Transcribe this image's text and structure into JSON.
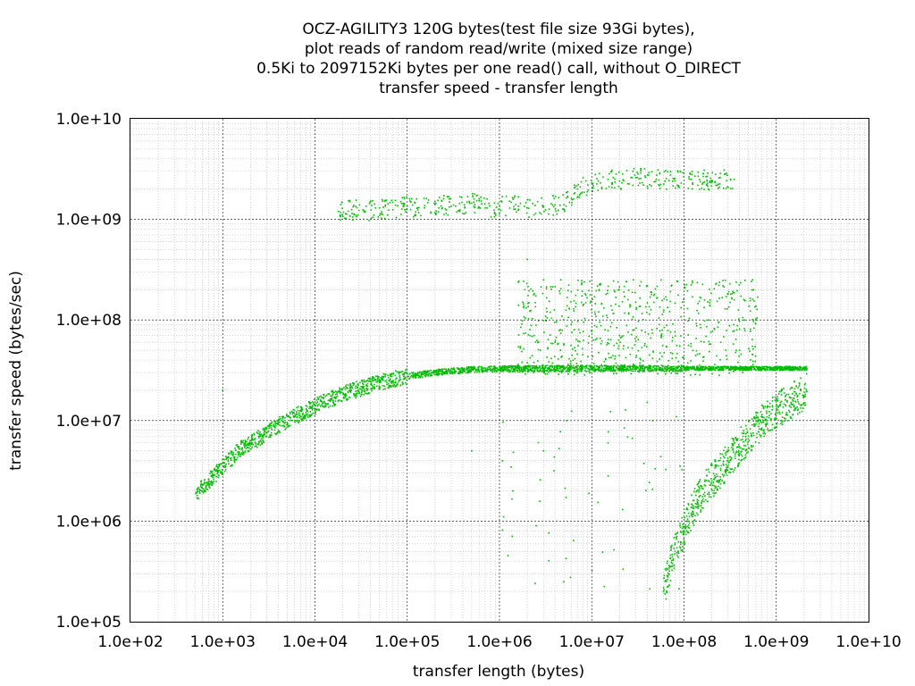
{
  "chart_data": {
    "type": "scatter",
    "title_lines": [
      "OCZ-AGILITY3 120G bytes(test file size 93Gi bytes),",
      "plot reads of random read/write (mixed size range)",
      "0.5Ki to 2097152Ki bytes per one read() call, without O_DIRECT",
      "transfer speed - transfer length"
    ],
    "xlabel": "transfer length (bytes)",
    "ylabel": "transfer speed (bytes/sec)",
    "x_scale": "log",
    "y_scale": "log",
    "xlim": [
      100,
      10000000000
    ],
    "ylim": [
      100000,
      10000000000
    ],
    "x_tick_labels": [
      "1.0e+02",
      "1.0e+03",
      "1.0e+04",
      "1.0e+05",
      "1.0e+06",
      "1.0e+07",
      "1.0e+08",
      "1.0e+09",
      "1.0e+10"
    ],
    "y_tick_labels": [
      "1.0e+05",
      "1.0e+06",
      "1.0e+07",
      "1.0e+08",
      "1.0e+09",
      "1.0e+10"
    ],
    "grid": true,
    "marker_color": "#00bb00",
    "clusters": [
      {
        "description_points": "main plateau",
        "points": [
          [
            512,
            1900000
          ],
          [
            1024,
            3500000
          ],
          [
            1536,
            5200000
          ],
          [
            2048,
            6000000
          ],
          [
            3000,
            7500000
          ],
          [
            4096,
            9000000
          ],
          [
            6000,
            11000000
          ],
          [
            8192,
            12500000
          ],
          [
            12000,
            15000000
          ],
          [
            16384,
            17000000
          ],
          [
            24000,
            19500000
          ],
          [
            32768,
            21000000
          ],
          [
            50000,
            24000000
          ],
          [
            65536,
            25500000
          ],
          [
            100000,
            27500000
          ],
          [
            150000,
            29000000
          ],
          [
            200000,
            30000000
          ],
          [
            300000,
            31000000
          ],
          [
            500000,
            32000000
          ],
          [
            800000,
            32500000
          ],
          [
            1000000,
            32500000
          ],
          [
            2000000,
            32800000
          ],
          [
            5000000,
            33000000
          ],
          [
            10000000,
            33000000
          ],
          [
            20000000,
            33000000
          ],
          [
            50000000,
            33000000
          ],
          [
            100000000,
            33000000
          ],
          [
            200000000,
            33000000
          ],
          [
            500000000,
            33000000
          ],
          [
            1000000000,
            33000000
          ],
          [
            2147483648,
            33000000
          ]
        ]
      },
      {
        "description_points": "cached high band",
        "points": [
          [
            18000,
            1200000000
          ],
          [
            25000,
            1250000000
          ],
          [
            35000,
            1200000000
          ],
          [
            50000,
            1300000000
          ],
          [
            70000,
            1250000000
          ],
          [
            100000,
            1350000000
          ],
          [
            130000,
            1300000000
          ],
          [
            200000,
            1400000000
          ],
          [
            300000,
            1350000000
          ],
          [
            500000,
            1450000000
          ],
          [
            700000,
            1300000000
          ],
          [
            1000000,
            1350000000
          ],
          [
            1500000,
            1400000000
          ],
          [
            2000000,
            1300000000
          ],
          [
            3000000,
            1350000000
          ],
          [
            5000000,
            1400000000
          ],
          [
            7000000,
            2000000000
          ],
          [
            10000000,
            2300000000
          ],
          [
            15000000,
            2500000000
          ],
          [
            20000000,
            2400000000
          ],
          [
            30000000,
            2600000000
          ],
          [
            50000000,
            2500000000
          ],
          [
            80000000,
            2400000000
          ],
          [
            120000000,
            2500000000
          ],
          [
            200000000,
            2450000000
          ],
          [
            350000000,
            2500000000
          ]
        ]
      },
      {
        "description_points": "slow rising tail",
        "points": [
          [
            60000000,
            200000
          ],
          [
            70000000,
            350000
          ],
          [
            80000000,
            500000
          ],
          [
            100000000,
            800000
          ],
          [
            120000000,
            1200000
          ],
          [
            150000000,
            1800000
          ],
          [
            200000000,
            2500000
          ],
          [
            250000000,
            3200000
          ],
          [
            300000000,
            4000000
          ],
          [
            400000000,
            5500000
          ],
          [
            500000000,
            7000000
          ],
          [
            700000000,
            9500000
          ],
          [
            1000000000,
            12500000
          ],
          [
            1500000000,
            16000000
          ],
          [
            2147483648,
            19500000
          ]
        ]
      },
      {
        "description_points": "scattered mid band",
        "points": [
          [
            4000000,
            60000000
          ],
          [
            6000000,
            90000000
          ],
          [
            8000000,
            45000000
          ],
          [
            12000000,
            200000000
          ],
          [
            20000000,
            70000000
          ],
          [
            30000000,
            150000000
          ],
          [
            45000000,
            80000000
          ],
          [
            60000000,
            120000000
          ],
          [
            90000000,
            55000000
          ],
          [
            150000000,
            90000000
          ],
          [
            250000000,
            60000000
          ],
          [
            400000000,
            50000000
          ],
          [
            600000000,
            100000000
          ],
          [
            2000000,
            400000000
          ],
          [
            3000000,
            250000000
          ],
          [
            40000000,
            220000000
          ],
          [
            15000000,
            6000000
          ],
          [
            3000000,
            5000000
          ],
          [
            2500000,
            900000
          ],
          [
            500000,
            5000000
          ],
          [
            1000,
            20000000
          ],
          [
            2500,
            7000000
          ]
        ]
      }
    ]
  }
}
